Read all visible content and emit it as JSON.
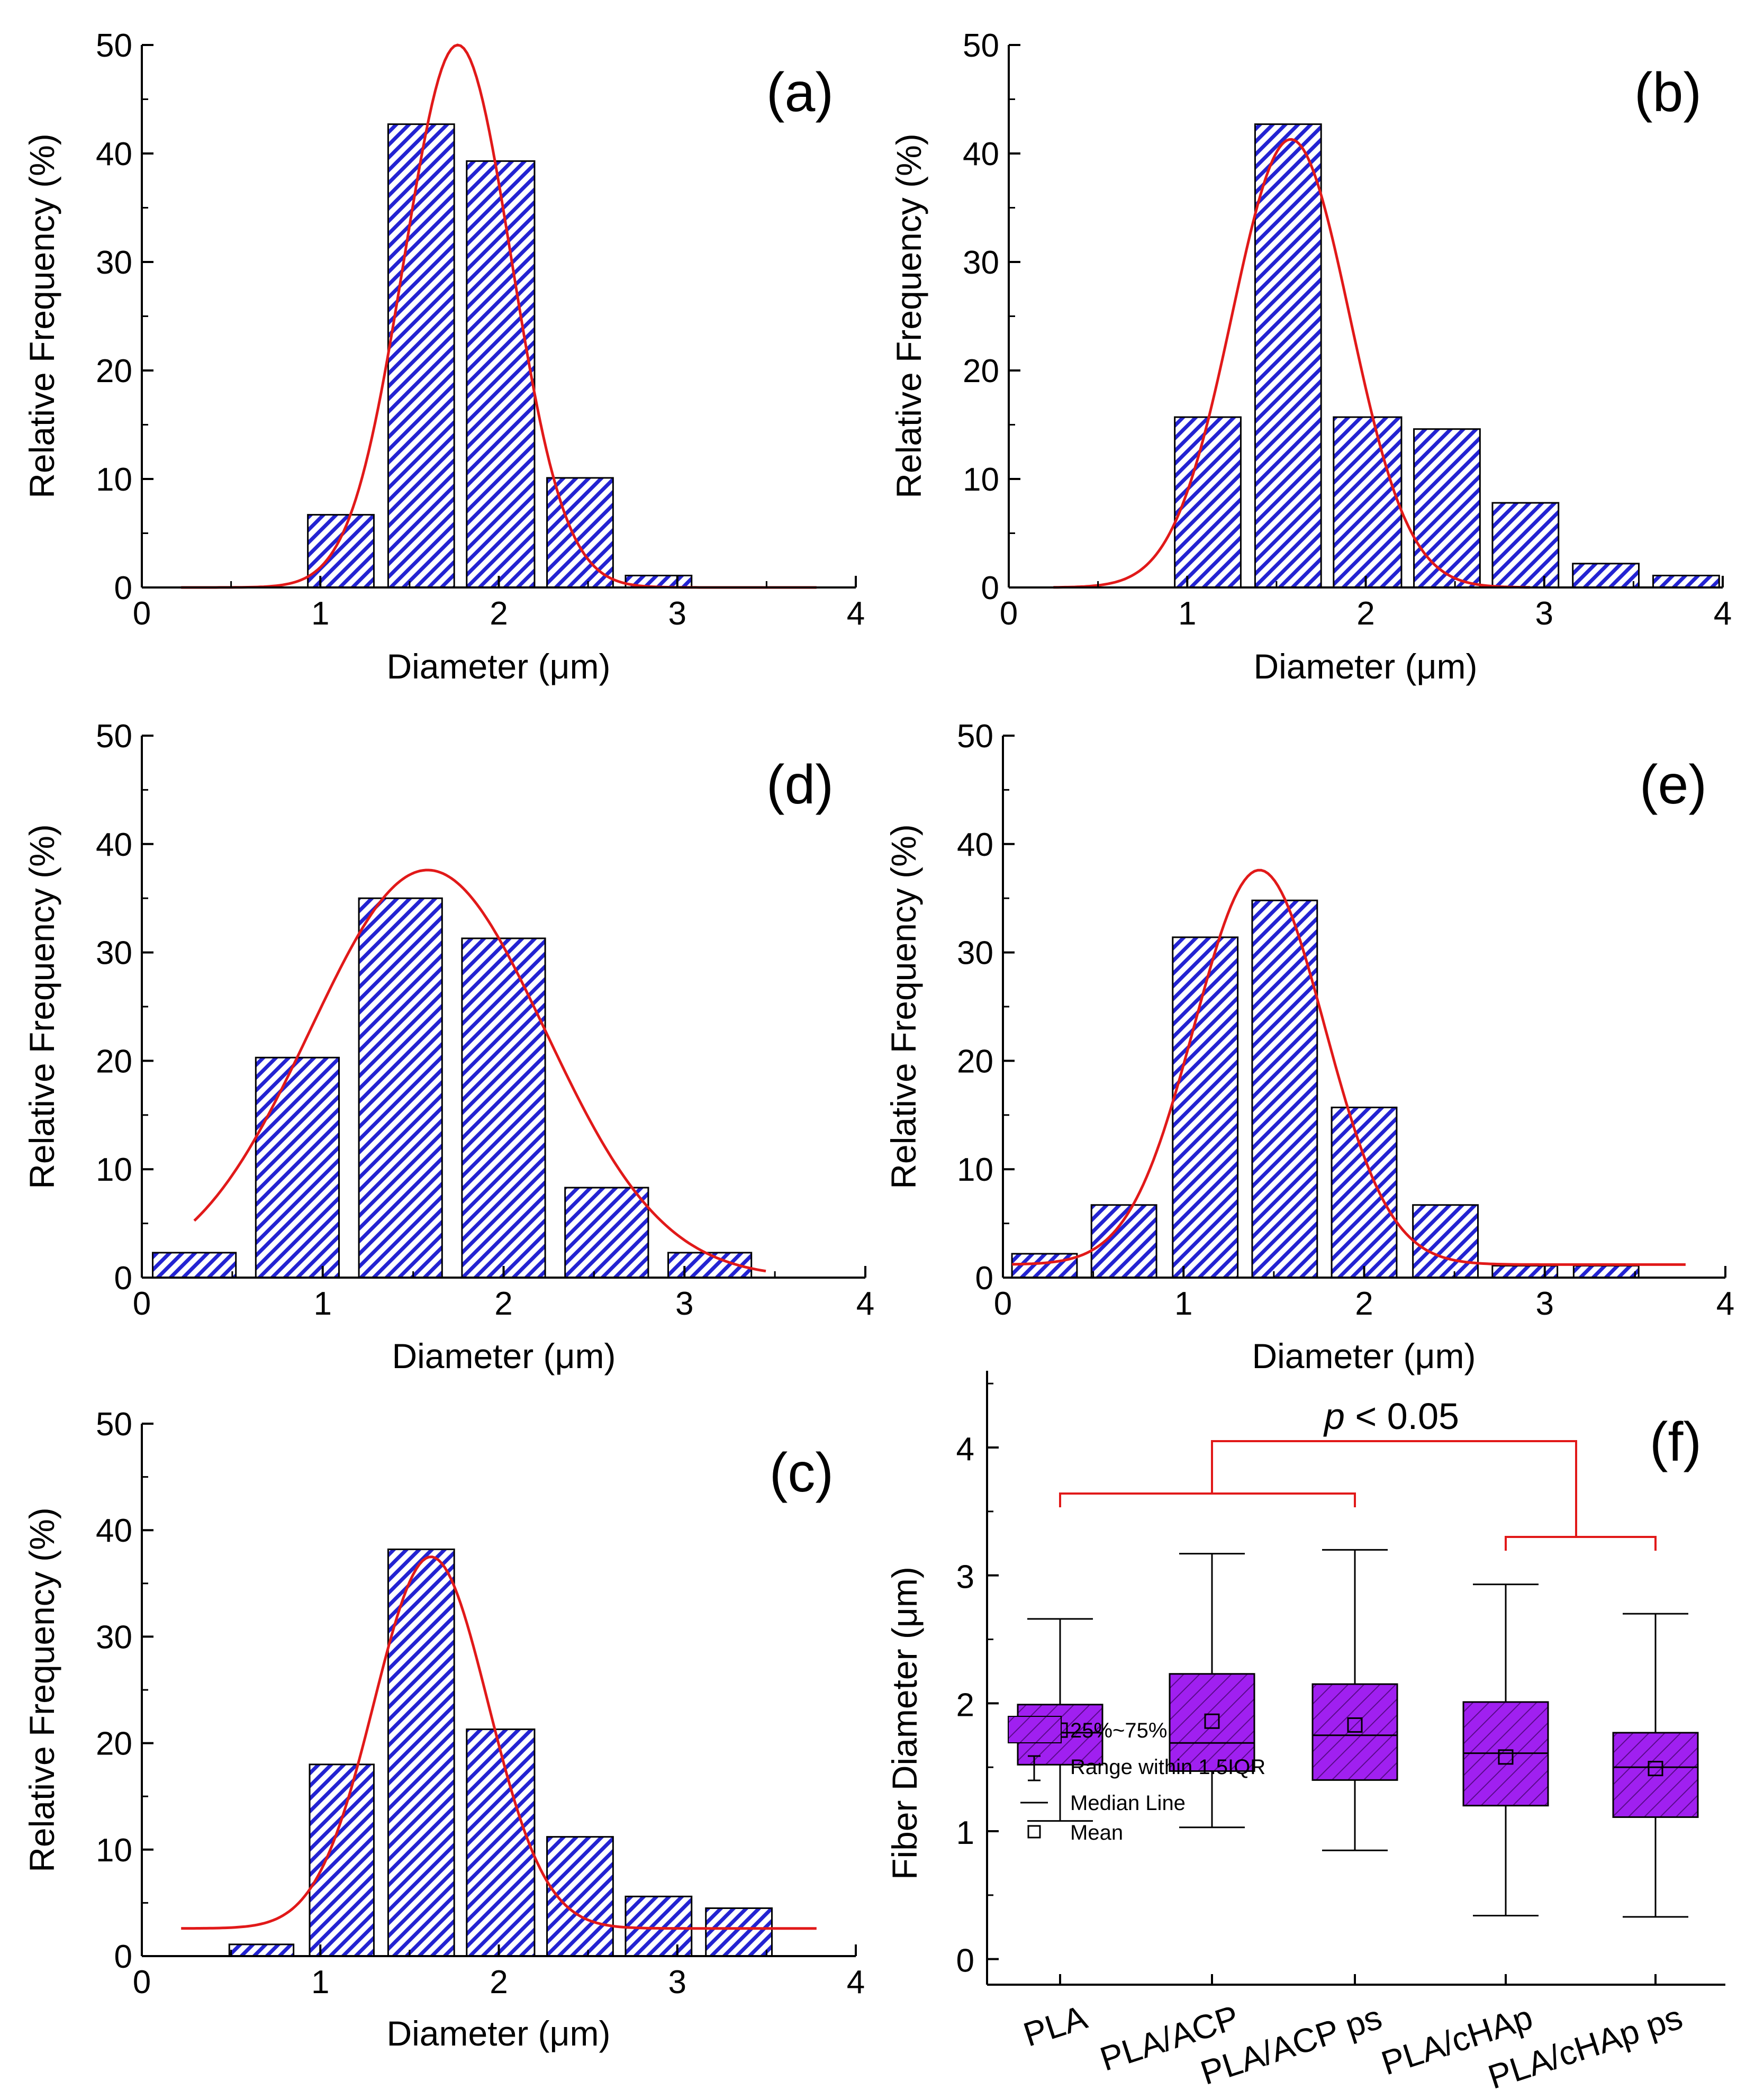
{
  "colors": {
    "bar_stripe": "#2323d2",
    "fit_line": "#e11919",
    "box_fill": "#a020f0",
    "bracket": "#e11919"
  },
  "chart_data": [
    {
      "id": "a",
      "type": "bar",
      "panel_label": "(a)",
      "xlabel": "Diameter (μm)",
      "ylabel": "Relative Frequency (%)",
      "xlim": [
        0,
        4
      ],
      "ylim": [
        0,
        50
      ],
      "xticks": [
        "0",
        "1",
        "2",
        "3",
        "4"
      ],
      "yticks": [
        "0",
        "10",
        "20",
        "30",
        "40",
        "50"
      ],
      "bins": [
        {
          "x0": 0.93,
          "x1": 1.3,
          "value": 6.7
        },
        {
          "x0": 1.38,
          "x1": 1.75,
          "value": 42.7
        },
        {
          "x0": 1.82,
          "x1": 2.2,
          "value": 39.3
        },
        {
          "x0": 2.27,
          "x1": 2.64,
          "value": 10.1
        },
        {
          "x0": 2.71,
          "x1": 3.08,
          "value": 1.1
        }
      ],
      "fit": {
        "type": "gaussian",
        "center": 1.77,
        "sigma": 0.3,
        "height": 50.0,
        "offset": 0.0,
        "xmin": 0.22,
        "xmax": 3.78
      }
    },
    {
      "id": "b",
      "type": "bar",
      "panel_label": "(b)",
      "xlabel": "Diameter (μm)",
      "ylabel": "Relative Frequency (%)",
      "xlim": [
        0,
        4
      ],
      "ylim": [
        0,
        50
      ],
      "xticks": [
        "0",
        "1",
        "2",
        "3",
        "4"
      ],
      "yticks": [
        "0",
        "10",
        "20",
        "30",
        "40",
        "50"
      ],
      "bins": [
        {
          "x0": 0.93,
          "x1": 1.3,
          "value": 15.7
        },
        {
          "x0": 1.38,
          "x1": 1.75,
          "value": 42.7
        },
        {
          "x0": 1.82,
          "x1": 2.2,
          "value": 15.7
        },
        {
          "x0": 2.27,
          "x1": 2.64,
          "value": 14.6
        },
        {
          "x0": 2.71,
          "x1": 3.08,
          "value": 7.8
        },
        {
          "x0": 3.16,
          "x1": 3.53,
          "value": 2.2
        },
        {
          "x0": 3.61,
          "x1": 3.98,
          "value": 1.1
        }
      ],
      "fit": {
        "type": "gaussian",
        "center": 1.58,
        "sigma": 0.33,
        "height": 41.3,
        "offset": 0.0,
        "xmin": 0.25,
        "xmax": 2.92
      }
    },
    {
      "id": "d",
      "type": "bar",
      "panel_label": "(d)",
      "xlabel": "Diameter (μm)",
      "ylabel": "Relative Frequency (%)",
      "xlim": [
        0,
        4
      ],
      "ylim": [
        0,
        50
      ],
      "xticks": [
        "0",
        "1",
        "2",
        "3",
        "4"
      ],
      "yticks": [
        "0",
        "10",
        "20",
        "30",
        "40",
        "50"
      ],
      "bins": [
        {
          "x0": 0.06,
          "x1": 0.52,
          "value": 2.3
        },
        {
          "x0": 0.63,
          "x1": 1.09,
          "value": 20.3
        },
        {
          "x0": 1.2,
          "x1": 1.66,
          "value": 35.0
        },
        {
          "x0": 1.77,
          "x1": 2.23,
          "value": 31.3
        },
        {
          "x0": 2.34,
          "x1": 2.8,
          "value": 8.3
        },
        {
          "x0": 2.91,
          "x1": 3.37,
          "value": 2.3
        }
      ],
      "fit": {
        "type": "gaussian",
        "center": 1.58,
        "sigma": 0.65,
        "height": 37.6,
        "offset": 0.0,
        "xmin": 0.29,
        "xmax": 3.45
      }
    },
    {
      "id": "e",
      "type": "bar",
      "panel_label": "(e)",
      "xlabel": "Diameter (μm)",
      "ylabel": "Relative Frequency (%)",
      "xlim": [
        0,
        4
      ],
      "ylim": [
        0,
        50
      ],
      "xticks": [
        "0",
        "1",
        "2",
        "3",
        "4"
      ],
      "yticks": [
        "0",
        "10",
        "20",
        "30",
        "40",
        "50"
      ],
      "bins": [
        {
          "x0": 0.05,
          "x1": 0.41,
          "value": 2.2
        },
        {
          "x0": 0.49,
          "x1": 0.85,
          "value": 6.7
        },
        {
          "x0": 0.94,
          "x1": 1.3,
          "value": 31.4
        },
        {
          "x0": 1.38,
          "x1": 1.74,
          "value": 34.8
        },
        {
          "x0": 1.82,
          "x1": 2.18,
          "value": 15.7
        },
        {
          "x0": 2.27,
          "x1": 2.63,
          "value": 6.7
        },
        {
          "x0": 2.71,
          "x1": 3.07,
          "value": 1.1
        },
        {
          "x0": 3.16,
          "x1": 3.52,
          "value": 1.1
        }
      ],
      "fit": {
        "type": "gaussian",
        "center": 1.42,
        "sigma": 0.36,
        "height": 36.4,
        "offset": 1.2,
        "xmin": 0.05,
        "xmax": 3.78
      }
    },
    {
      "id": "c",
      "type": "bar",
      "panel_label": "(c)",
      "xlabel": "Diameter (μm)",
      "ylabel": "Relative Frequency (%)",
      "xlim": [
        0,
        4
      ],
      "ylim": [
        0,
        50
      ],
      "xticks": [
        "0",
        "1",
        "2",
        "3",
        "4"
      ],
      "yticks": [
        "0",
        "10",
        "20",
        "30",
        "40",
        "50"
      ],
      "bins": [
        {
          "x0": 0.49,
          "x1": 0.85,
          "value": 1.1
        },
        {
          "x0": 0.94,
          "x1": 1.3,
          "value": 18.0
        },
        {
          "x0": 1.38,
          "x1": 1.75,
          "value": 38.2
        },
        {
          "x0": 1.82,
          "x1": 2.2,
          "value": 21.3
        },
        {
          "x0": 2.27,
          "x1": 2.64,
          "value": 11.2
        },
        {
          "x0": 2.71,
          "x1": 3.08,
          "value": 5.6
        },
        {
          "x0": 3.16,
          "x1": 3.53,
          "value": 4.5
        }
      ],
      "fit": {
        "type": "gaussian",
        "center": 1.62,
        "sigma": 0.32,
        "height": 34.9,
        "offset": 2.6,
        "xmin": 0.22,
        "xmax": 3.78
      }
    },
    {
      "id": "f",
      "type": "box",
      "panel_label": "(f)",
      "ylabel": "Fiber Diameter (μm)",
      "ylim": [
        -0.2,
        4.6
      ],
      "yticks": [
        "0",
        "1",
        "2",
        "3",
        "4"
      ],
      "categories": [
        "PLA",
        "PLA/ACP",
        "PLA/ACP ps",
        "PLA/cHAp",
        "PLA/cHAp ps"
      ],
      "boxes": [
        {
          "whisker_low": 1.08,
          "q1": 1.52,
          "median": 1.77,
          "q3": 1.99,
          "whisker_high": 2.66,
          "mean": 1.79
        },
        {
          "whisker_low": 1.03,
          "q1": 1.47,
          "median": 1.69,
          "q3": 2.23,
          "whisker_high": 3.17,
          "mean": 1.86
        },
        {
          "whisker_low": 0.85,
          "q1": 1.4,
          "median": 1.75,
          "q3": 2.15,
          "whisker_high": 3.2,
          "mean": 1.83
        },
        {
          "whisker_low": 0.34,
          "q1": 1.2,
          "median": 1.61,
          "q3": 2.01,
          "whisker_high": 2.93,
          "mean": 1.58
        },
        {
          "whisker_low": 0.33,
          "q1": 1.11,
          "median": 1.5,
          "q3": 1.77,
          "whisker_high": 2.7,
          "mean": 1.49
        }
      ],
      "annotation": {
        "p_symbol": "p",
        "p_rest": " < 0.05"
      },
      "legend": [
        "25%~75%",
        "Range within 1.5IQR",
        "Median Line",
        "Mean"
      ]
    }
  ]
}
